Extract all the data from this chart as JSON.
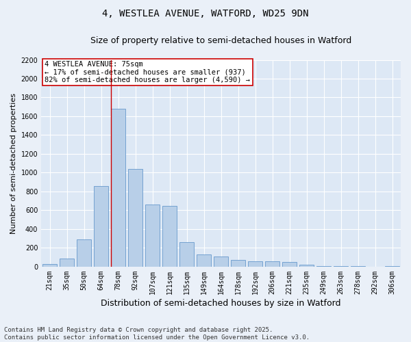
{
  "title_line1": "4, WESTLEA AVENUE, WATFORD, WD25 9DN",
  "title_line2": "Size of property relative to semi-detached houses in Watford",
  "xlabel": "Distribution of semi-detached houses by size in Watford",
  "ylabel": "Number of semi-detached properties",
  "categories": [
    "21sqm",
    "35sqm",
    "50sqm",
    "64sqm",
    "78sqm",
    "92sqm",
    "107sqm",
    "121sqm",
    "135sqm",
    "149sqm",
    "164sqm",
    "178sqm",
    "192sqm",
    "206sqm",
    "221sqm",
    "235sqm",
    "249sqm",
    "263sqm",
    "278sqm",
    "292sqm",
    "306sqm"
  ],
  "values": [
    30,
    85,
    290,
    860,
    1680,
    1040,
    660,
    650,
    260,
    130,
    110,
    70,
    55,
    55,
    50,
    20,
    5,
    5,
    5,
    2,
    5
  ],
  "bar_color": "#b8cfe8",
  "bar_edge_color": "#6699cc",
  "background_color": "#dde8f5",
  "plot_bg_color": "#dde8f5",
  "fig_bg_color": "#eaf0f8",
  "grid_color": "#ffffff",
  "annotation_text": "4 WESTLEA AVENUE: 75sqm\n← 17% of semi-detached houses are smaller (937)\n82% of semi-detached houses are larger (4,590) →",
  "annotation_box_facecolor": "#ffffff",
  "annotation_box_edgecolor": "#cc0000",
  "vline_color": "#cc0000",
  "vline_x_index": 4,
  "ylim_max": 2200,
  "yticks": [
    0,
    200,
    400,
    600,
    800,
    1000,
    1200,
    1400,
    1600,
    1800,
    2000,
    2200
  ],
  "footnote": "Contains HM Land Registry data © Crown copyright and database right 2025.\nContains public sector information licensed under the Open Government Licence v3.0.",
  "title1_fontsize": 10,
  "title2_fontsize": 9,
  "ylabel_fontsize": 8,
  "xlabel_fontsize": 9,
  "tick_fontsize": 7,
  "annotation_fontsize": 7.5,
  "footnote_fontsize": 6.5
}
